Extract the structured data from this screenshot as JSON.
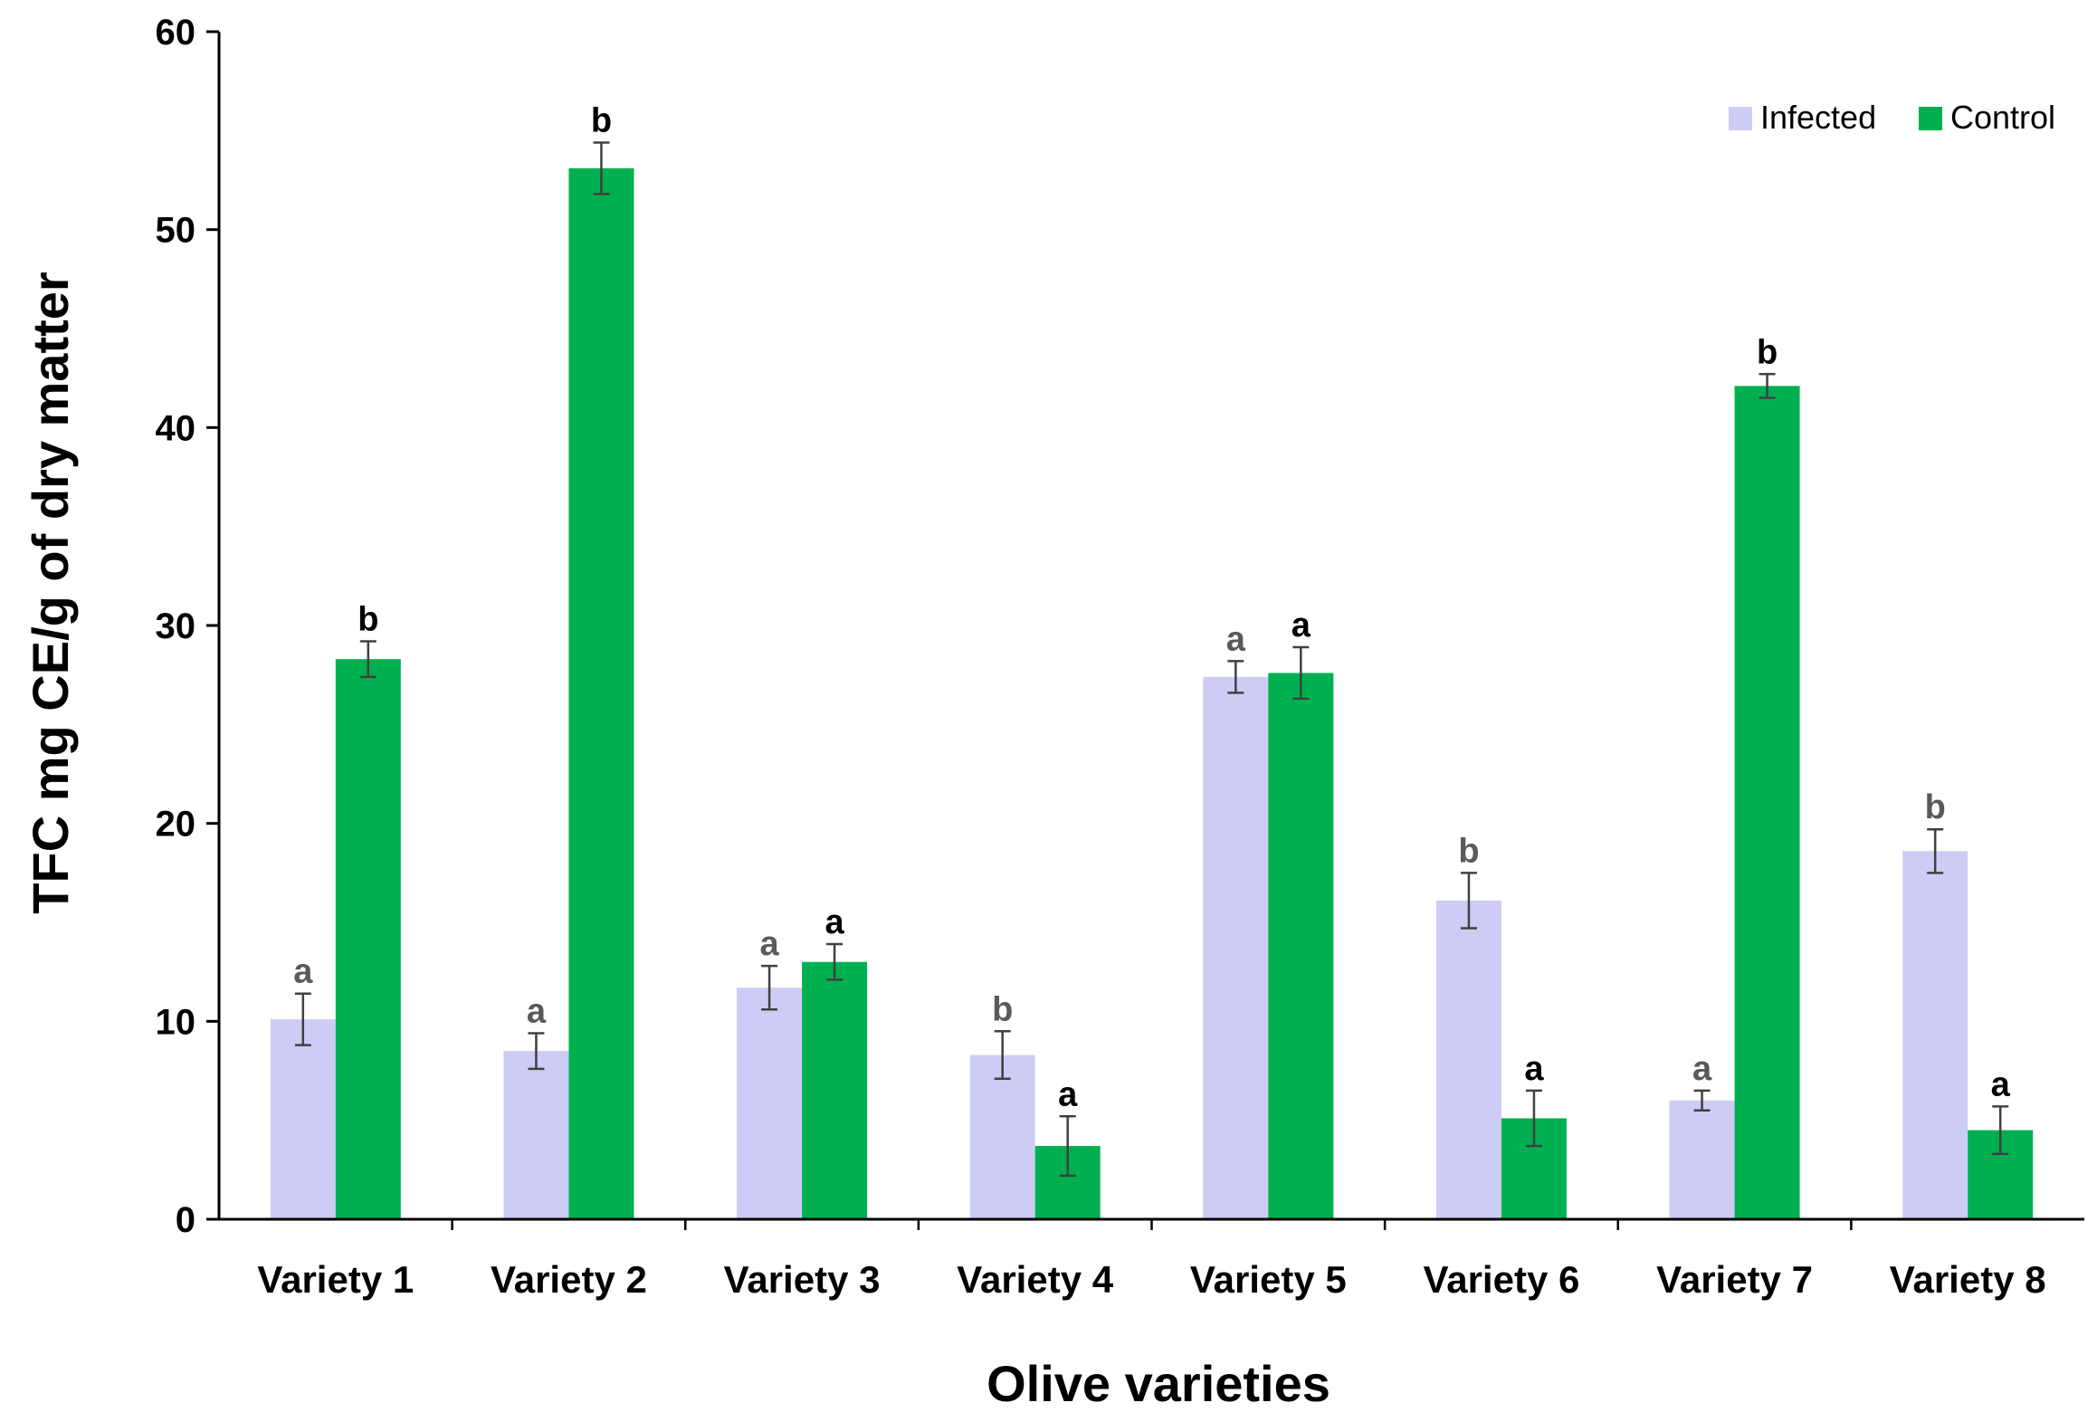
{
  "chart_data": {
    "type": "bar",
    "title": "",
    "xlabel": "Olive varieties",
    "ylabel": "TFC mg CE/g of dry matter",
    "ylim": [
      0,
      60
    ],
    "yticks": [
      0,
      10,
      20,
      30,
      40,
      50,
      60
    ],
    "categories": [
      "Variety 1",
      "Variety 2",
      "Variety 3",
      "Variety 4",
      "Variety 5",
      "Variety 6",
      "Variety 7",
      "Variety 8"
    ],
    "series": [
      {
        "name": "Infected",
        "color": "#ccccf5",
        "values": [
          10.1,
          8.5,
          11.7,
          8.3,
          27.4,
          16.1,
          6.0,
          18.6
        ],
        "errors": [
          1.3,
          0.9,
          1.1,
          1.2,
          0.8,
          1.4,
          0.5,
          1.1
        ],
        "significance": [
          "a",
          "a",
          "a",
          "b",
          "a",
          "b",
          "a",
          "b"
        ]
      },
      {
        "name": "Control",
        "color": "#00b050",
        "values": [
          28.3,
          53.1,
          13.0,
          3.7,
          27.6,
          5.1,
          42.1,
          4.5
        ],
        "errors": [
          0.9,
          1.3,
          0.9,
          1.5,
          1.3,
          1.4,
          0.6,
          1.2
        ],
        "significance": [
          "b",
          "b",
          "a",
          "a",
          "a",
          "a",
          "b",
          "a"
        ]
      }
    ],
    "legend": {
      "position": "top-right",
      "entries": [
        "Infected",
        "Control"
      ]
    },
    "grid": false
  }
}
